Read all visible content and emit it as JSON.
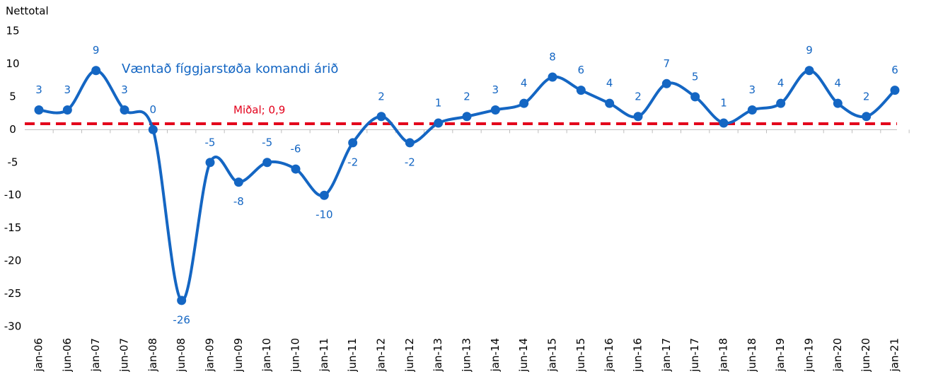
{
  "chart_data": {
    "type": "line",
    "y_label": "Nettotal",
    "categories": [
      "jan-06",
      "jun-06",
      "jan-07",
      "jun-07",
      "jan-08",
      "jun-08",
      "jan-09",
      "jun-09",
      "jan-10",
      "jun-10",
      "jan-11",
      "jun-11",
      "jan-12",
      "jun-12",
      "jan-13",
      "jun-13",
      "jan-14",
      "jun-14",
      "jan-15",
      "jun-15",
      "jan-16",
      "jun-16",
      "jan-17",
      "jun-17",
      "jan-18",
      "jun-18",
      "jan-19",
      "jun-19",
      "jan-20",
      "jun-20",
      "jan-21"
    ],
    "series": [
      {
        "name": "Væntað fíggjarstøða komandi árið",
        "color": "#1466c3",
        "values": [
          3,
          3,
          9,
          3,
          0,
          -26,
          -5,
          -8,
          -5,
          -6,
          -10,
          -2,
          2,
          -2,
          1,
          2,
          3,
          4,
          8,
          6,
          4,
          2,
          7,
          5,
          1,
          3,
          4,
          9,
          4,
          2,
          6
        ]
      }
    ],
    "mean": {
      "value": 0.9,
      "label": "Miðal; 0,9",
      "color": "#e3001b"
    },
    "ylim": [
      -30,
      15
    ],
    "yticks": [
      -30,
      -25,
      -20,
      -15,
      -10,
      -5,
      0,
      5,
      10,
      15
    ],
    "grid": false
  }
}
